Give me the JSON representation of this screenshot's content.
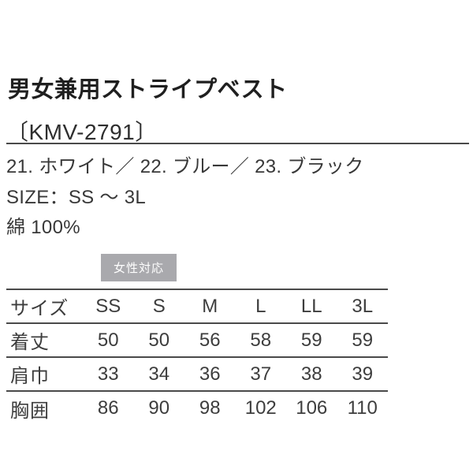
{
  "page": {
    "title": "男女兼用ストライプベスト",
    "product_code": "〔KMV-2791〕",
    "colors_line": "21. ホワイト／ 22. ブルー／ 23. ブラック",
    "size_line": "SIZE：SS ～ 3L",
    "material_line": "綿 100%",
    "badge_label": "女性対応"
  },
  "size_table": {
    "header": [
      "サイズ",
      "SS",
      "S",
      "M",
      "L",
      "LL",
      "3L"
    ],
    "rows": [
      {
        "label": "着丈",
        "values": [
          "50",
          "50",
          "56",
          "58",
          "59",
          "59"
        ]
      },
      {
        "label": "肩巾",
        "values": [
          "33",
          "34",
          "36",
          "37",
          "38",
          "39"
        ]
      },
      {
        "label": "胸囲",
        "values": [
          "86",
          "90",
          "98",
          "102",
          "106",
          "110"
        ]
      }
    ]
  },
  "colors": {
    "background": "#ffffff",
    "title": "#1f1f1f",
    "text": "#383838",
    "line": "#4a4a4a",
    "badge_bg": "#a9a9ad",
    "badge_text": "#ffffff"
  }
}
